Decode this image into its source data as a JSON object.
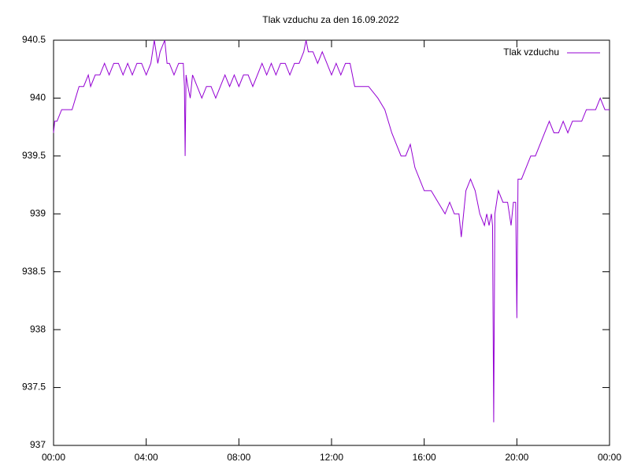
{
  "chart_data": {
    "type": "line",
    "title": "Tlak vzduchu za den 16.09.2022",
    "series": [
      {
        "name": "Tlak vzduchu",
        "color": "#9400d3",
        "x": [
          0,
          0.05,
          0.15,
          0.35,
          0.5,
          0.8,
          0.95,
          1.1,
          1.3,
          1.5,
          1.6,
          1.8,
          2.0,
          2.2,
          2.4,
          2.6,
          2.8,
          3.0,
          3.2,
          3.4,
          3.6,
          3.8,
          4.0,
          4.2,
          4.35,
          4.5,
          4.6,
          4.8,
          4.9,
          5.0,
          5.2,
          5.4,
          5.6,
          5.65,
          5.68,
          5.72,
          5.8,
          5.9,
          6.0,
          6.2,
          6.4,
          6.6,
          6.8,
          7.0,
          7.2,
          7.4,
          7.6,
          7.8,
          8.0,
          8.2,
          8.4,
          8.6,
          8.8,
          9.0,
          9.2,
          9.4,
          9.6,
          9.8,
          10.0,
          10.2,
          10.4,
          10.6,
          10.8,
          10.9,
          11.0,
          11.2,
          11.4,
          11.6,
          11.8,
          12.0,
          12.2,
          12.4,
          12.6,
          12.8,
          13.0,
          13.3,
          13.6,
          14.0,
          14.3,
          14.6,
          14.8,
          15.0,
          15.2,
          15.4,
          15.6,
          15.8,
          16.0,
          16.3,
          16.6,
          16.9,
          17.1,
          17.3,
          17.5,
          17.6,
          17.8,
          18.0,
          18.2,
          18.4,
          18.6,
          18.7,
          18.8,
          18.9,
          18.95,
          19.0,
          19.05,
          19.2,
          19.4,
          19.6,
          19.75,
          19.85,
          19.95,
          20.0,
          20.05,
          20.2,
          20.4,
          20.6,
          20.8,
          21.0,
          21.2,
          21.4,
          21.6,
          21.8,
          22.0,
          22.2,
          22.4,
          22.6,
          22.8,
          23.0,
          23.2,
          23.4,
          23.6,
          23.8,
          24.0
        ],
        "values": [
          939.7,
          939.8,
          939.8,
          939.9,
          939.9,
          939.9,
          940.0,
          940.1,
          940.1,
          940.2,
          940.1,
          940.2,
          940.2,
          940.3,
          940.2,
          940.3,
          940.3,
          940.2,
          940.3,
          940.2,
          940.3,
          940.3,
          940.2,
          940.3,
          940.5,
          940.3,
          940.4,
          940.5,
          940.3,
          940.3,
          940.2,
          940.3,
          940.3,
          940.1,
          939.5,
          940.2,
          940.1,
          940.0,
          940.2,
          940.1,
          940.0,
          940.1,
          940.1,
          940.0,
          940.1,
          940.2,
          940.1,
          940.2,
          940.1,
          940.2,
          940.2,
          940.1,
          940.2,
          940.3,
          940.2,
          940.3,
          940.2,
          940.3,
          940.3,
          940.2,
          940.3,
          940.3,
          940.4,
          940.5,
          940.4,
          940.4,
          940.3,
          940.4,
          940.3,
          940.2,
          940.3,
          940.2,
          940.3,
          940.3,
          940.1,
          940.1,
          940.1,
          940.0,
          939.9,
          939.7,
          939.6,
          939.5,
          939.5,
          939.6,
          939.4,
          939.3,
          939.2,
          939.2,
          939.1,
          939.0,
          939.1,
          939.0,
          939.0,
          938.8,
          939.2,
          939.3,
          939.2,
          939.0,
          938.9,
          939.0,
          938.9,
          939.0,
          938.9,
          937.2,
          939.0,
          939.2,
          939.1,
          939.1,
          938.9,
          939.1,
          939.1,
          938.1,
          939.3,
          939.3,
          939.4,
          939.5,
          939.5,
          939.6,
          939.7,
          939.8,
          939.7,
          939.7,
          939.8,
          939.7,
          939.8,
          939.8,
          939.8,
          939.9,
          939.9,
          939.9,
          940.0,
          939.9,
          939.9
        ]
      }
    ],
    "xlim": [
      0,
      24
    ],
    "xticks": [
      {
        "value": 0,
        "label": "00:00"
      },
      {
        "value": 4,
        "label": "04:00"
      },
      {
        "value": 8,
        "label": "08:00"
      },
      {
        "value": 12,
        "label": "12:00"
      },
      {
        "value": 16,
        "label": "16:00"
      },
      {
        "value": 20,
        "label": "20:00"
      },
      {
        "value": 24,
        "label": "00:00"
      }
    ],
    "ylim": [
      937,
      940.5
    ],
    "yticks": [
      937,
      937.5,
      938,
      938.5,
      939,
      939.5,
      940,
      940.5
    ],
    "legend": "top-right"
  }
}
